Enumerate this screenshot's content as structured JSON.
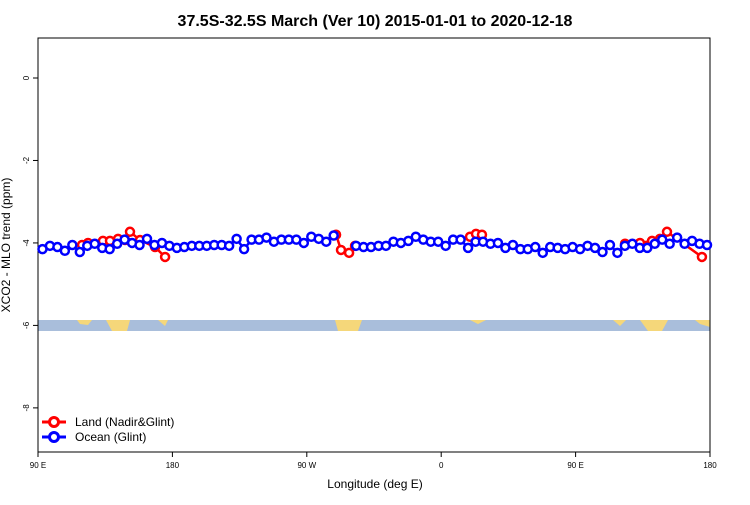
{
  "chart_data": {
    "type": "line",
    "title": "37.5S-32.5S March (Ver 10)   2015-01-01 to 2020-12-18",
    "x_label": "Longitude (deg E)",
    "y_label": "XCO2 - MLO trend (ppm)",
    "xlim": [
      90,
      540
    ],
    "xticks": [
      {
        "value": 90,
        "label": "90 E"
      },
      180,
      {
        "value": 270,
        "label": "90 W"
      },
      {
        "value": 360,
        "label": "0"
      },
      {
        "value": 450,
        "label": "90 E"
      },
      {
        "value": 540,
        "label": "180"
      }
    ],
    "ylim": [
      -9.07,
      0.97
    ],
    "yticks": [
      0,
      -2,
      -4,
      -6,
      -8
    ],
    "legend": "bottom-left",
    "series": [
      {
        "name": "Land (Nadir&Glint)",
        "color": "#ff0000",
        "x": [
          119.5,
          123.5,
          133.5,
          138.2,
          143.6,
          148.3,
          151.6,
          158.3,
          168.4,
          175.1,
          200,
          289.6,
          292.9,
          298.3,
          302.3,
          320,
          379.3,
          383.3,
          387.3,
          420,
          483.1,
          493.1,
          501.2,
          506.5,
          511.2,
          534.6
        ],
        "values": [
          -4.05,
          -4.0,
          -3.95,
          -3.95,
          -3.9,
          -3.93,
          -3.73,
          -3.93,
          -4.1,
          -4.34,
          null,
          -3.8,
          -4.17,
          -4.24,
          -4.07,
          null,
          -3.85,
          -3.78,
          -3.8,
          null,
          -4.02,
          -4.0,
          -3.95,
          -3.9,
          -3.73,
          -4.34
        ]
      },
      {
        "name": "Ocean (Glint)",
        "color": "#0000ff",
        "x": [
          93,
          98,
          103,
          108,
          113,
          118,
          123,
          128,
          133,
          138,
          143,
          148,
          153,
          158,
          163,
          168,
          173,
          178,
          183,
          188,
          193,
          198,
          203,
          208,
          213,
          218,
          223,
          228,
          233,
          238,
          243,
          248,
          253,
          258,
          263,
          268,
          273,
          278,
          283,
          288,
          293,
          298,
          303,
          308,
          313,
          318,
          323,
          328,
          333,
          338,
          343,
          348,
          353,
          358,
          363,
          368,
          373,
          378,
          383,
          388,
          393,
          398,
          403,
          408,
          413,
          418,
          423,
          428,
          433,
          438,
          443,
          448,
          453,
          458,
          463,
          468,
          473,
          478,
          483,
          488,
          493,
          498,
          503,
          508,
          513,
          518,
          523,
          528,
          533,
          538
        ],
        "values": [
          -4.15,
          -4.07,
          -4.1,
          -4.19,
          -4.05,
          -4.22,
          -4.07,
          -4.02,
          -4.12,
          -4.15,
          -4.02,
          -3.92,
          -4.0,
          -4.05,
          -3.9,
          -4.05,
          -4.0,
          -4.07,
          -4.12,
          -4.1,
          -4.07,
          -4.07,
          -4.07,
          -4.05,
          -4.05,
          -4.07,
          -3.9,
          -4.15,
          -3.92,
          -3.92,
          -3.87,
          -3.97,
          -3.92,
          -3.92,
          -3.92,
          -4.0,
          -3.85,
          -3.9,
          -3.97,
          -3.82,
          null,
          null,
          -4.07,
          -4.1,
          -4.1,
          -4.07,
          -4.07,
          -3.97,
          -4.0,
          -3.95,
          -3.85,
          -3.92,
          -3.97,
          -3.97,
          -4.07,
          -3.92,
          -3.92,
          -4.12,
          -3.97,
          -3.97,
          -4.02,
          -4.0,
          -4.12,
          -4.05,
          -4.15,
          -4.15,
          -4.1,
          -4.24,
          -4.1,
          -4.12,
          -4.15,
          -4.1,
          -4.15,
          -4.07,
          -4.12,
          -4.22,
          -4.05,
          -4.24,
          -4.07,
          -4.02,
          -4.12,
          -4.12,
          -4.02,
          -3.92,
          -4.02,
          -3.87,
          -4.02,
          -3.95,
          -4.02,
          -4.05
        ]
      }
    ]
  }
}
